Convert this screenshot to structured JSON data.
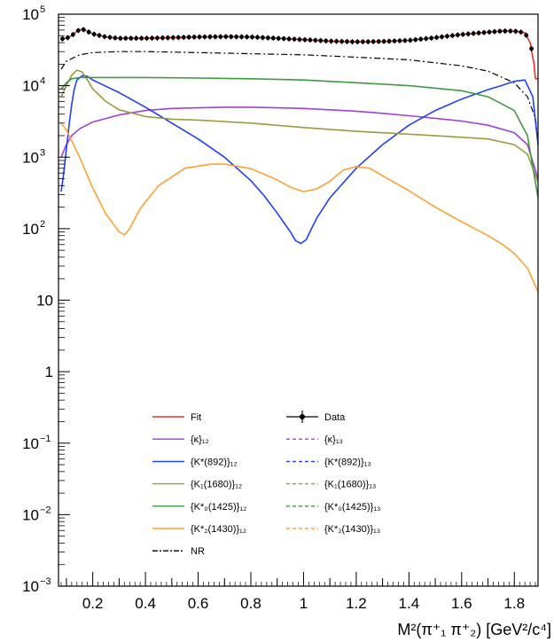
{
  "chart_data": {
    "type": "line",
    "xlabel": "M²(π⁺₁ π⁺₂) [GeV²/c⁴]",
    "x_range": [
      0.07,
      1.89
    ],
    "y_range": [
      0.001,
      100000
    ],
    "y_scale": "log",
    "x_ticks": [
      {
        "value": 0.2,
        "label": "0.2"
      },
      {
        "value": 0.4,
        "label": "0.4"
      },
      {
        "value": 0.6,
        "label": "0.6"
      },
      {
        "value": 0.8,
        "label": "0.8"
      },
      {
        "value": 1.0,
        "label": "1"
      },
      {
        "value": 1.2,
        "label": "1.2"
      },
      {
        "value": 1.4,
        "label": "1.4"
      },
      {
        "value": 1.6,
        "label": "1.6"
      },
      {
        "value": 1.8,
        "label": "1.8"
      }
    ],
    "y_ticks": [
      {
        "value": 0.001,
        "base": "10",
        "exp": "−3"
      },
      {
        "value": 0.01,
        "base": "10",
        "exp": "−2"
      },
      {
        "value": 0.1,
        "base": "10",
        "exp": "−1"
      },
      {
        "value": 1,
        "base": "1",
        "exp": ""
      },
      {
        "value": 10,
        "base": "10",
        "exp": ""
      },
      {
        "value": 100,
        "base": "10",
        "exp": "2"
      },
      {
        "value": 1000,
        "base": "10",
        "exp": "3"
      },
      {
        "value": 10000,
        "base": "10",
        "exp": "4"
      },
      {
        "value": 100000,
        "base": "10",
        "exp": "5"
      }
    ],
    "legend_position": "bottom-left",
    "legend": [
      {
        "label": "Fit",
        "color": "#e8312a",
        "style": "solid"
      },
      {
        "label": "Data",
        "color": "#000000",
        "style": "data"
      },
      {
        "label": "{κ}₁₂",
        "color": "#a040d8",
        "style": "solid"
      },
      {
        "label": "{κ}₁₃",
        "color": "#a040d8",
        "style": "dashed"
      },
      {
        "label": "{K*(892)}₁₂",
        "color": "#1f3fff",
        "style": "solid"
      },
      {
        "label": "{K*(892)}₁₃",
        "color": "#1f3fff",
        "style": "dashed"
      },
      {
        "label": "{K₁(1680)}₁₂",
        "color": "#9a9a40",
        "style": "solid"
      },
      {
        "label": "{K₁(1680)}₁₃",
        "color": "#9a9a40",
        "style": "dashed"
      },
      {
        "label": "{K*₀(1425)}₁₂",
        "color": "#3f9a3f",
        "style": "solid"
      },
      {
        "label": "{K*₀(1425)}₁₃",
        "color": "#3f9a3f",
        "style": "dashed"
      },
      {
        "label": "{K*₂(1430)}₁₂",
        "color": "#ffa030",
        "style": "solid"
      },
      {
        "label": "{K*₂(1430)}₁₃",
        "color": "#ffa030",
        "style": "dashed"
      },
      {
        "label": "NR",
        "color": "#000000",
        "style": "dashdot"
      }
    ],
    "series": [
      {
        "name": "Fit",
        "color": "#e8312a",
        "dash": "",
        "width": 1.6,
        "x": [
          0.08,
          0.1,
          0.12,
          0.14,
          0.16,
          0.2,
          0.25,
          0.3,
          0.4,
          0.5,
          0.6,
          0.7,
          0.8,
          0.9,
          1.0,
          1.1,
          1.2,
          1.3,
          1.4,
          1.5,
          1.6,
          1.7,
          1.75,
          1.8,
          1.84,
          1.86,
          1.875,
          1.88,
          1.89
        ],
        "y": [
          45000,
          46000,
          50000,
          58000,
          62000,
          53000,
          48000,
          46000,
          46000,
          47000,
          48000,
          48500,
          48000,
          46000,
          44000,
          42000,
          41000,
          41500,
          43000,
          47000,
          52000,
          56000,
          58000,
          58000,
          55000,
          40000,
          20000,
          12500,
          12500
        ]
      },
      {
        "name": "Data",
        "color": "#000000",
        "dash": "",
        "width": 1.0,
        "x": [
          0.08,
          0.1,
          0.12,
          0.14,
          0.16,
          0.2,
          0.25,
          0.3,
          0.4,
          0.5,
          0.6,
          0.7,
          0.8,
          0.9,
          1.0,
          1.1,
          1.2,
          1.3,
          1.4,
          1.5,
          1.6,
          1.7,
          1.75,
          1.8,
          1.84,
          1.86,
          1.89
        ],
        "y": [
          45000,
          46000,
          50000,
          58000,
          62000,
          53000,
          48000,
          46000,
          46000,
          47000,
          48000,
          48500,
          48000,
          46000,
          44000,
          42000,
          41000,
          41500,
          43000,
          47000,
          52000,
          56000,
          58000,
          58000,
          55000,
          40000,
          12500
        ]
      },
      {
        "name": "NR",
        "color": "#000000",
        "dash": "7,3,2,3",
        "width": 1.2,
        "x": [
          0.08,
          0.1,
          0.15,
          0.2,
          0.3,
          0.4,
          0.6,
          0.8,
          1.0,
          1.2,
          1.4,
          1.6,
          1.7,
          1.8,
          1.85,
          1.88,
          1.89
        ],
        "y": [
          17000,
          22000,
          27000,
          29000,
          30000,
          30000,
          29000,
          28000,
          27000,
          25000,
          23000,
          19000,
          16000,
          11000,
          7000,
          3500,
          1800
        ]
      },
      {
        "name": "{κ}₁₂",
        "color": "#a040d8",
        "dash": "",
        "width": 1.6,
        "x": [
          0.08,
          0.1,
          0.12,
          0.15,
          0.2,
          0.3,
          0.4,
          0.5,
          0.6,
          0.7,
          0.8,
          0.9,
          1.0,
          1.1,
          1.2,
          1.3,
          1.4,
          1.5,
          1.6,
          1.7,
          1.8,
          1.85,
          1.89
        ],
        "y": [
          1000,
          1500,
          2000,
          2500,
          3100,
          3900,
          4500,
          4800,
          4900,
          5000,
          5000,
          4900,
          4800,
          4600,
          4400,
          4100,
          3800,
          3500,
          3200,
          2800,
          2200,
          1500,
          500
        ]
      },
      {
        "name": "{K*(892)}₁₂",
        "color": "#1f3fff",
        "dash": "",
        "width": 1.6,
        "x": [
          0.08,
          0.09,
          0.1,
          0.11,
          0.12,
          0.13,
          0.14,
          0.16,
          0.18,
          0.2,
          0.3,
          0.4,
          0.5,
          0.6,
          0.7,
          0.8,
          0.85,
          0.9,
          0.95,
          0.97,
          0.99,
          1.01,
          1.03,
          1.05,
          1.1,
          1.2,
          1.3,
          1.4,
          1.5,
          1.6,
          1.7,
          1.75,
          1.8,
          1.84,
          1.87,
          1.89
        ],
        "y": [
          330,
          600,
          1300,
          2800,
          5500,
          9000,
          12000,
          13800,
          13500,
          12000,
          8000,
          5000,
          3000,
          1800,
          1000,
          470,
          290,
          165,
          90,
          68,
          62,
          70,
          100,
          140,
          270,
          700,
          1500,
          2800,
          4500,
          6500,
          8800,
          10000,
          11500,
          12000,
          7000,
          1500
        ]
      },
      {
        "name": "{K₁(1680)}₁₂",
        "color": "#9a9a40",
        "dash": "",
        "width": 1.6,
        "x": [
          0.08,
          0.1,
          0.12,
          0.14,
          0.16,
          0.18,
          0.2,
          0.25,
          0.3,
          0.4,
          0.5,
          0.6,
          0.8,
          1.0,
          1.2,
          1.4,
          1.6,
          1.7,
          1.8,
          1.85,
          1.89
        ],
        "y": [
          7000,
          10000,
          14000,
          16500,
          15500,
          12000,
          9000,
          6000,
          4600,
          3700,
          3400,
          3300,
          3000,
          2600,
          2300,
          2100,
          1900,
          1800,
          1500,
          1100,
          450
        ]
      },
      {
        "name": "{K*₀(1425)}₁₂",
        "color": "#3f9a3f",
        "dash": "",
        "width": 1.6,
        "x": [
          0.08,
          0.1,
          0.12,
          0.15,
          0.2,
          0.3,
          0.4,
          0.6,
          0.8,
          1.0,
          1.2,
          1.4,
          1.6,
          1.7,
          1.8,
          1.85,
          1.89
        ],
        "y": [
          9000,
          11000,
          12500,
          13000,
          13000,
          13000,
          13000,
          12800,
          12500,
          12000,
          11000,
          10000,
          8500,
          7000,
          4500,
          2000,
          270
        ]
      },
      {
        "name": "{K*₂(1430)}₁₂",
        "color": "#ffa030",
        "dash": "",
        "width": 1.6,
        "x": [
          0.08,
          0.1,
          0.15,
          0.2,
          0.25,
          0.3,
          0.32,
          0.34,
          0.38,
          0.45,
          0.55,
          0.65,
          0.7,
          0.8,
          0.9,
          0.95,
          1.0,
          1.05,
          1.1,
          1.15,
          1.2,
          1.25,
          1.3,
          1.4,
          1.5,
          1.6,
          1.7,
          1.75,
          1.8,
          1.85,
          1.89
        ],
        "y": [
          3000,
          2400,
          1000,
          370,
          160,
          90,
          82,
          100,
          190,
          400,
          700,
          800,
          800,
          690,
          480,
          380,
          330,
          360,
          460,
          660,
          740,
          700,
          550,
          340,
          200,
          125,
          80,
          62,
          45,
          28,
          13
        ]
      }
    ]
  }
}
